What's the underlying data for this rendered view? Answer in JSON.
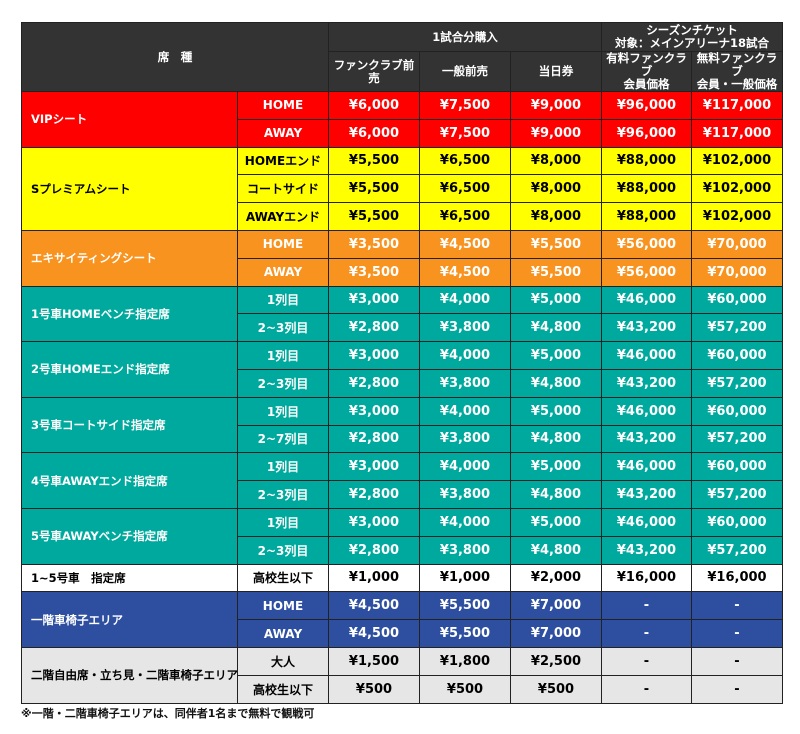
{
  "header": {
    "seat_type": "席　種",
    "single_game": "1試合分購入",
    "season_ticket": "シーズンチケット",
    "season_target": "対象：メインアリーナ18試合",
    "columns": [
      "ファンクラブ前売",
      "一般前売",
      "当日券",
      "有料ファンクラブ\n会員価格",
      "無料ファンクラブ\n会員・一般価格"
    ]
  },
  "colors": {
    "header": "#333333",
    "vip": "#ff0000",
    "s_premium": "#ffff00",
    "exciting": "#f7931e",
    "reserved": "#00a99d",
    "student": "#ffffff",
    "wheelchair1": "#2e4fa0",
    "second_floor": "#e6e6e6"
  },
  "groups": [
    {
      "name": "VIPシート",
      "color": "#ff0000",
      "text": "#ffffff",
      "rows": [
        {
          "sub": "HOME",
          "prices": [
            "¥6,000",
            "¥7,500",
            "¥9,000",
            "¥96,000",
            "¥117,000"
          ]
        },
        {
          "sub": "AWAY",
          "prices": [
            "¥6,000",
            "¥7,500",
            "¥9,000",
            "¥96,000",
            "¥117,000"
          ]
        }
      ]
    },
    {
      "name": "Sプレミアムシート",
      "color": "#ffff00",
      "text": "#000000",
      "rows": [
        {
          "sub": "HOMEエンド",
          "prices": [
            "¥5,500",
            "¥6,500",
            "¥8,000",
            "¥88,000",
            "¥102,000"
          ]
        },
        {
          "sub": "コートサイド",
          "prices": [
            "¥5,500",
            "¥6,500",
            "¥8,000",
            "¥88,000",
            "¥102,000"
          ]
        },
        {
          "sub": "AWAYエンド",
          "prices": [
            "¥5,500",
            "¥6,500",
            "¥8,000",
            "¥88,000",
            "¥102,000"
          ]
        }
      ]
    },
    {
      "name": "エキサイティングシート",
      "color": "#f7931e",
      "text": "#ffffff",
      "rows": [
        {
          "sub": "HOME",
          "prices": [
            "¥3,500",
            "¥4,500",
            "¥5,500",
            "¥56,000",
            "¥70,000"
          ]
        },
        {
          "sub": "AWAY",
          "prices": [
            "¥3,500",
            "¥4,500",
            "¥5,500",
            "¥56,000",
            "¥70,000"
          ]
        }
      ]
    },
    {
      "name": "1号車HOMEベンチ指定席",
      "color": "#00a99d",
      "text": "#ffffff",
      "rows": [
        {
          "sub": "1列目",
          "prices": [
            "¥3,000",
            "¥4,000",
            "¥5,000",
            "¥46,000",
            "¥60,000"
          ]
        },
        {
          "sub": "2~3列目",
          "prices": [
            "¥2,800",
            "¥3,800",
            "¥4,800",
            "¥43,200",
            "¥57,200"
          ]
        }
      ]
    },
    {
      "name": "2号車HOMEエンド指定席",
      "color": "#00a99d",
      "text": "#ffffff",
      "rows": [
        {
          "sub": "1列目",
          "prices": [
            "¥3,000",
            "¥4,000",
            "¥5,000",
            "¥46,000",
            "¥60,000"
          ]
        },
        {
          "sub": "2~3列目",
          "prices": [
            "¥2,800",
            "¥3,800",
            "¥4,800",
            "¥43,200",
            "¥57,200"
          ]
        }
      ]
    },
    {
      "name": "3号車コートサイド指定席",
      "color": "#00a99d",
      "text": "#ffffff",
      "rows": [
        {
          "sub": "1列目",
          "prices": [
            "¥3,000",
            "¥4,000",
            "¥5,000",
            "¥46,000",
            "¥60,000"
          ]
        },
        {
          "sub": "2~7列目",
          "prices": [
            "¥2,800",
            "¥3,800",
            "¥4,800",
            "¥43,200",
            "¥57,200"
          ]
        }
      ]
    },
    {
      "name": "4号車AWAYエンド指定席",
      "color": "#00a99d",
      "text": "#ffffff",
      "rows": [
        {
          "sub": "1列目",
          "prices": [
            "¥3,000",
            "¥4,000",
            "¥5,000",
            "¥46,000",
            "¥60,000"
          ]
        },
        {
          "sub": "2~3列目",
          "prices": [
            "¥2,800",
            "¥3,800",
            "¥4,800",
            "¥43,200",
            "¥57,200"
          ]
        }
      ]
    },
    {
      "name": "5号車AWAYベンチ指定席",
      "color": "#00a99d",
      "text": "#ffffff",
      "rows": [
        {
          "sub": "1列目",
          "prices": [
            "¥3,000",
            "¥4,000",
            "¥5,000",
            "¥46,000",
            "¥60,000"
          ]
        },
        {
          "sub": "2~3列目",
          "prices": [
            "¥2,800",
            "¥3,800",
            "¥4,800",
            "¥43,200",
            "¥57,200"
          ]
        }
      ]
    },
    {
      "name": "1~5号車　指定席",
      "color": "#ffffff",
      "text": "#000000",
      "rows": [
        {
          "sub": "高校生以下",
          "prices": [
            "¥1,000",
            "¥1,000",
            "¥2,000",
            "¥16,000",
            "¥16,000"
          ]
        }
      ]
    },
    {
      "name": "一階車椅子エリア",
      "color": "#2e4fa0",
      "text": "#ffffff",
      "rows": [
        {
          "sub": "HOME",
          "prices": [
            "¥4,500",
            "¥5,500",
            "¥7,000",
            "-",
            "-"
          ]
        },
        {
          "sub": "AWAY",
          "prices": [
            "¥4,500",
            "¥5,500",
            "¥7,000",
            "-",
            "-"
          ]
        }
      ]
    },
    {
      "name": "二階自由席・立ち見・二階車椅子エリア",
      "color": "#e6e6e6",
      "text": "#000000",
      "rows": [
        {
          "sub": "大人",
          "prices": [
            "¥1,500",
            "¥1,800",
            "¥2,500",
            "-",
            "-"
          ]
        },
        {
          "sub": "高校生以下",
          "prices": [
            "¥500",
            "¥500",
            "¥500",
            "-",
            "-"
          ]
        }
      ]
    }
  ],
  "footnote": "※一階・二階車椅子エリアは、同伴者1名まで無料で観戦可"
}
